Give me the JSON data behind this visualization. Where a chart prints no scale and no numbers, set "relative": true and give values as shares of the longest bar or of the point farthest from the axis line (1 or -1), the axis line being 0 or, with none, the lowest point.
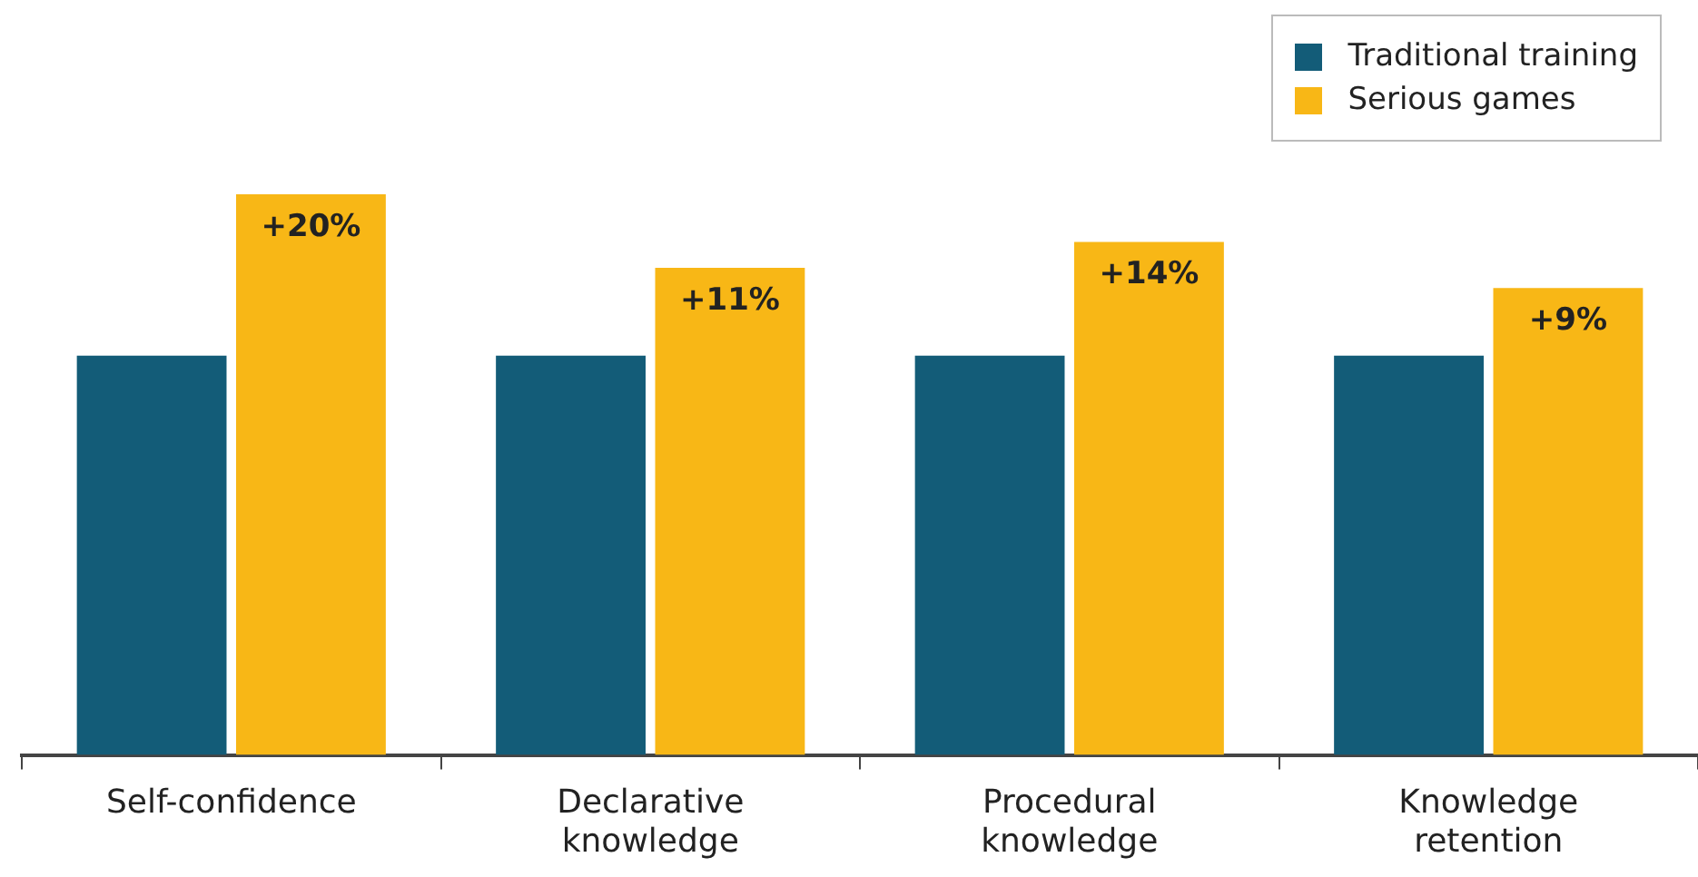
{
  "chart_data": {
    "type": "bar",
    "relative": true,
    "categories": [
      "Self-confidence",
      "Declarative knowledge",
      "Procedural knowledge",
      "Knowledge retention"
    ],
    "series": [
      {
        "name": "Traditional training",
        "color": "#135c78",
        "values": [
          0.712,
          0.712,
          0.712,
          0.712
        ]
      },
      {
        "name": "Serious games",
        "color": "#f8b716",
        "values": [
          1,
          0.869,
          0.915,
          0.833
        ]
      }
    ],
    "annotations": [
      {
        "text": "+20%",
        "x": "Self-confidence",
        "y": 1
      },
      {
        "text": "+11%",
        "x": "Declarative knowledge",
        "y": 0.869
      },
      {
        "text": "+14%",
        "x": "Procedural knowledge",
        "y": 0.915
      },
      {
        "text": "+9%",
        "x": "Knowledge retention",
        "y": 0.833
      }
    ],
    "legend": "top right",
    "grid": false
  }
}
